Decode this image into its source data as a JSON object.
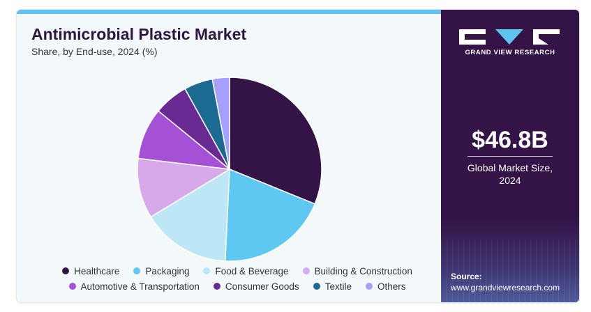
{
  "header": {
    "title": "Antimicrobial Plastic Market",
    "subtitle": "Share, by End-use, 2024 (%)"
  },
  "sidebar": {
    "brand": "GRAND VIEW RESEARCH",
    "market_value": "$46.8B",
    "market_value_label_line1": "Global Market Size,",
    "market_value_label_line2": "2024",
    "source_label": "Source:",
    "source_url": "www.grandviewresearch.com"
  },
  "colors": {
    "accent_bar": "#5ec3ee",
    "sidebar_bg": "#341446",
    "card_bg": "#f3f8fb"
  },
  "chart_data": {
    "type": "pie",
    "title": "Antimicrobial Plastic Market",
    "subtitle": "Share, by End-use, 2024 (%)",
    "categories": [
      "Healthcare",
      "Packaging",
      "Food & Beverage",
      "Building & Construction",
      "Automotive & Transportation",
      "Consumer Goods",
      "Textile",
      "Others"
    ],
    "values": [
      31,
      19.5,
      15.5,
      10.5,
      9,
      6,
      5,
      3
    ],
    "colors": [
      "#341446",
      "#5ec8f2",
      "#bde7f7",
      "#d6a9ea",
      "#a551d6",
      "#6a2a94",
      "#1a6a92",
      "#a5a0ff"
    ],
    "legend_position": "bottom"
  }
}
